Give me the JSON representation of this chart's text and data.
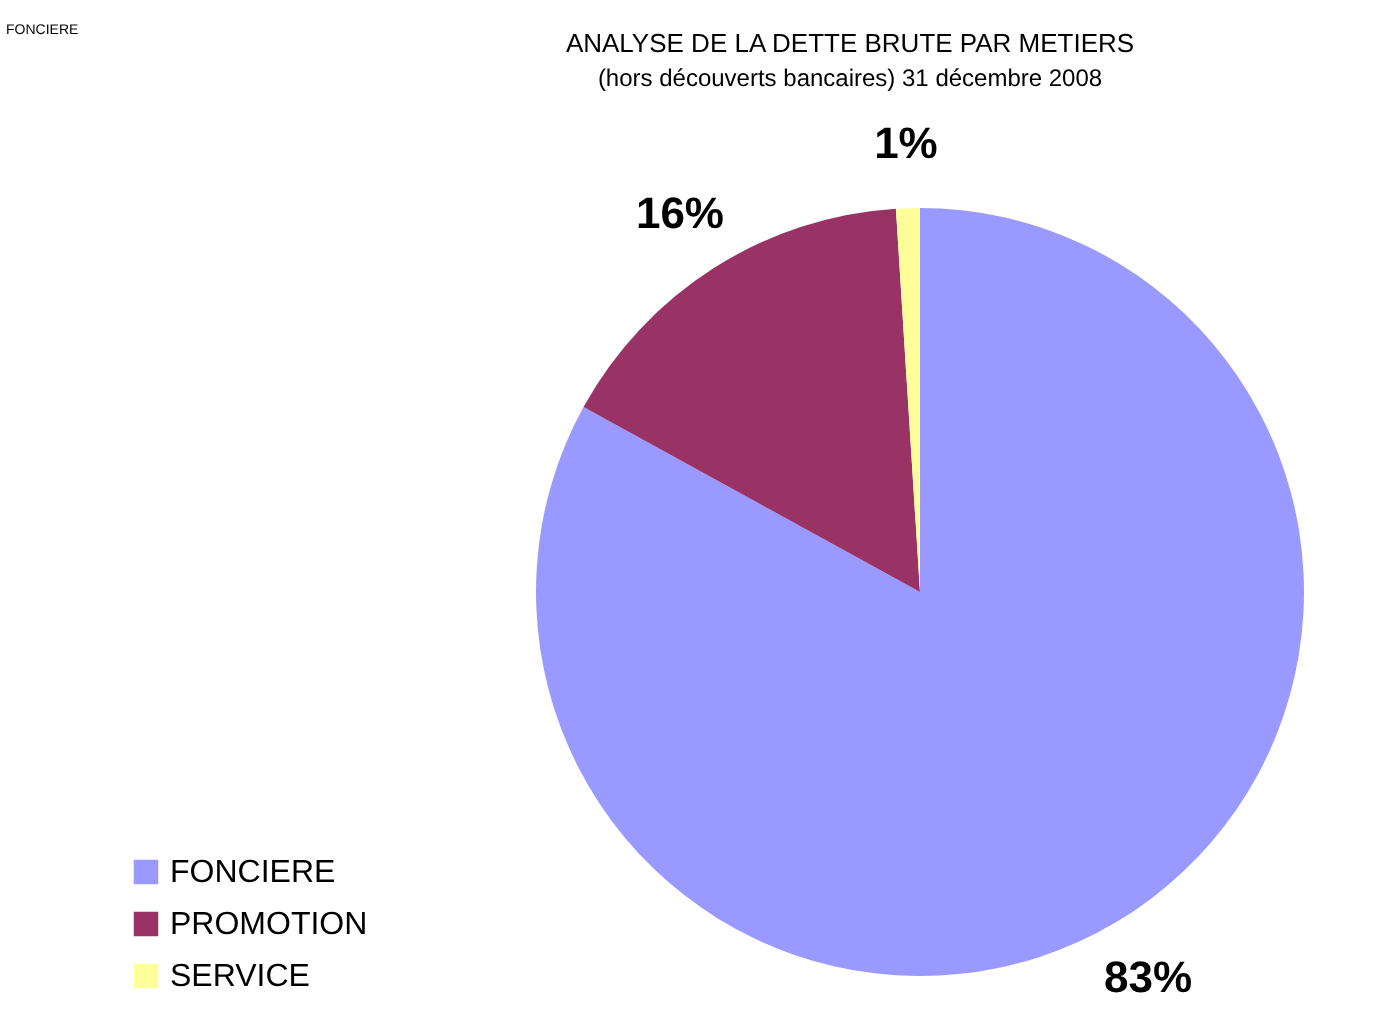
{
  "chart_data": {
    "type": "pie",
    "title": "ANALYSE DE LA DETTE BRUTE PAR METIERS",
    "subtitle": "(hors découverts bancaires) 31 décembre 2008",
    "annotations": [
      "FONCIERE"
    ],
    "categories": [
      "FONCIERE",
      "PROMOTION",
      "SERVICE"
    ],
    "values": [
      83,
      16,
      1
    ],
    "colors": [
      "#9999ff",
      "#993366",
      "#ffff99"
    ],
    "value_labels": [
      "83%",
      "16%",
      "1%"
    ],
    "legend": "bottom left"
  }
}
